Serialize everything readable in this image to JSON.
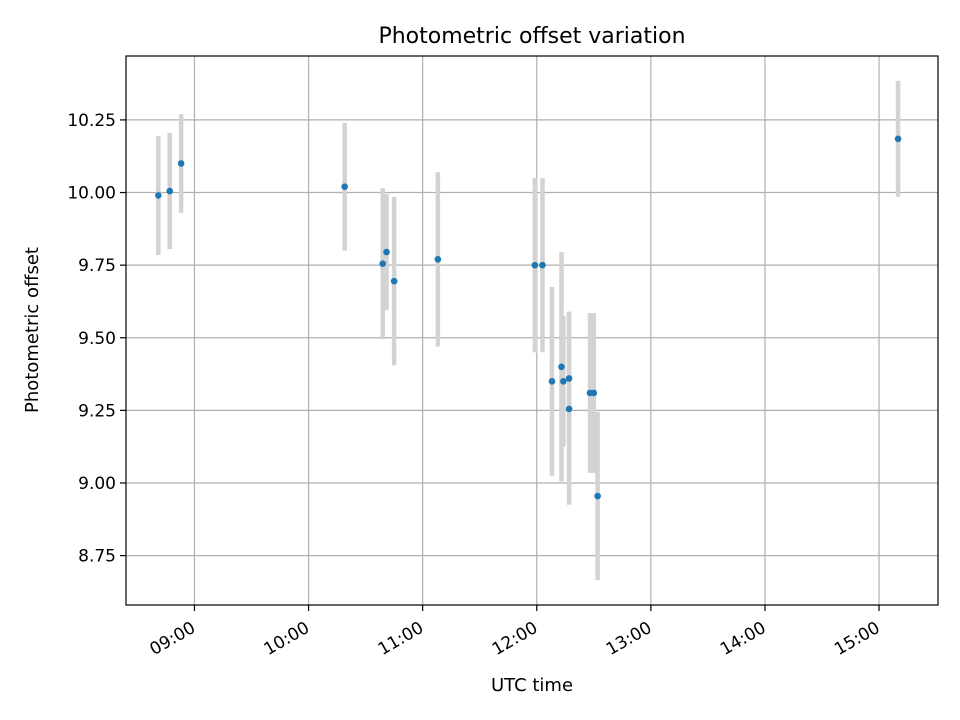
{
  "chart_data": {
    "type": "scatter",
    "title": "Photometric offset variation",
    "xlabel": "UTC time",
    "ylabel": "Photometric offset",
    "x_ticks": [
      "09:00",
      "10:00",
      "11:00",
      "12:00",
      "13:00",
      "14:00",
      "15:00"
    ],
    "y_ticks": [
      "8.75",
      "9.00",
      "9.25",
      "9.50",
      "9.75",
      "10.00",
      "10.25"
    ],
    "xlim": [
      "08:24",
      "15:31"
    ],
    "ylim": [
      8.58,
      10.47
    ],
    "grid": true,
    "point_color": "#1f77b4",
    "errorbar_color": "#d3d3d3",
    "points": [
      {
        "x": "08:41",
        "y": 9.99,
        "yerr": 0.205
      },
      {
        "x": "08:47",
        "y": 10.005,
        "yerr": 0.2
      },
      {
        "x": "08:53",
        "y": 10.1,
        "yerr": 0.17
      },
      {
        "x": "10:19",
        "y": 10.02,
        "yerr": 0.22
      },
      {
        "x": "10:39",
        "y": 9.755,
        "yerr": 0.26
      },
      {
        "x": "10:41",
        "y": 9.795,
        "yerr": 0.2
      },
      {
        "x": "10:45",
        "y": 9.695,
        "yerr": 0.29
      },
      {
        "x": "11:08",
        "y": 9.77,
        "yerr": 0.3
      },
      {
        "x": "11:59",
        "y": 9.75,
        "yerr": 0.3
      },
      {
        "x": "12:03",
        "y": 9.75,
        "yerr": 0.3
      },
      {
        "x": "12:08",
        "y": 9.35,
        "yerr": 0.325
      },
      {
        "x": "12:13",
        "y": 9.4,
        "yerr": 0.395
      },
      {
        "x": "12:14",
        "y": 9.35,
        "yerr": 0.225
      },
      {
        "x": "12:17",
        "y": 9.36,
        "yerr": 0.23
      },
      {
        "x": "12:17",
        "y": 9.255,
        "yerr": 0.33
      },
      {
        "x": "12:28",
        "y": 9.31,
        "yerr": 0.275
      },
      {
        "x": "12:30",
        "y": 9.31,
        "yerr": 0.275
      },
      {
        "x": "12:32",
        "y": 8.955,
        "yerr": 0.29
      },
      {
        "x": "15:10",
        "y": 10.185,
        "yerr": 0.2
      }
    ]
  }
}
